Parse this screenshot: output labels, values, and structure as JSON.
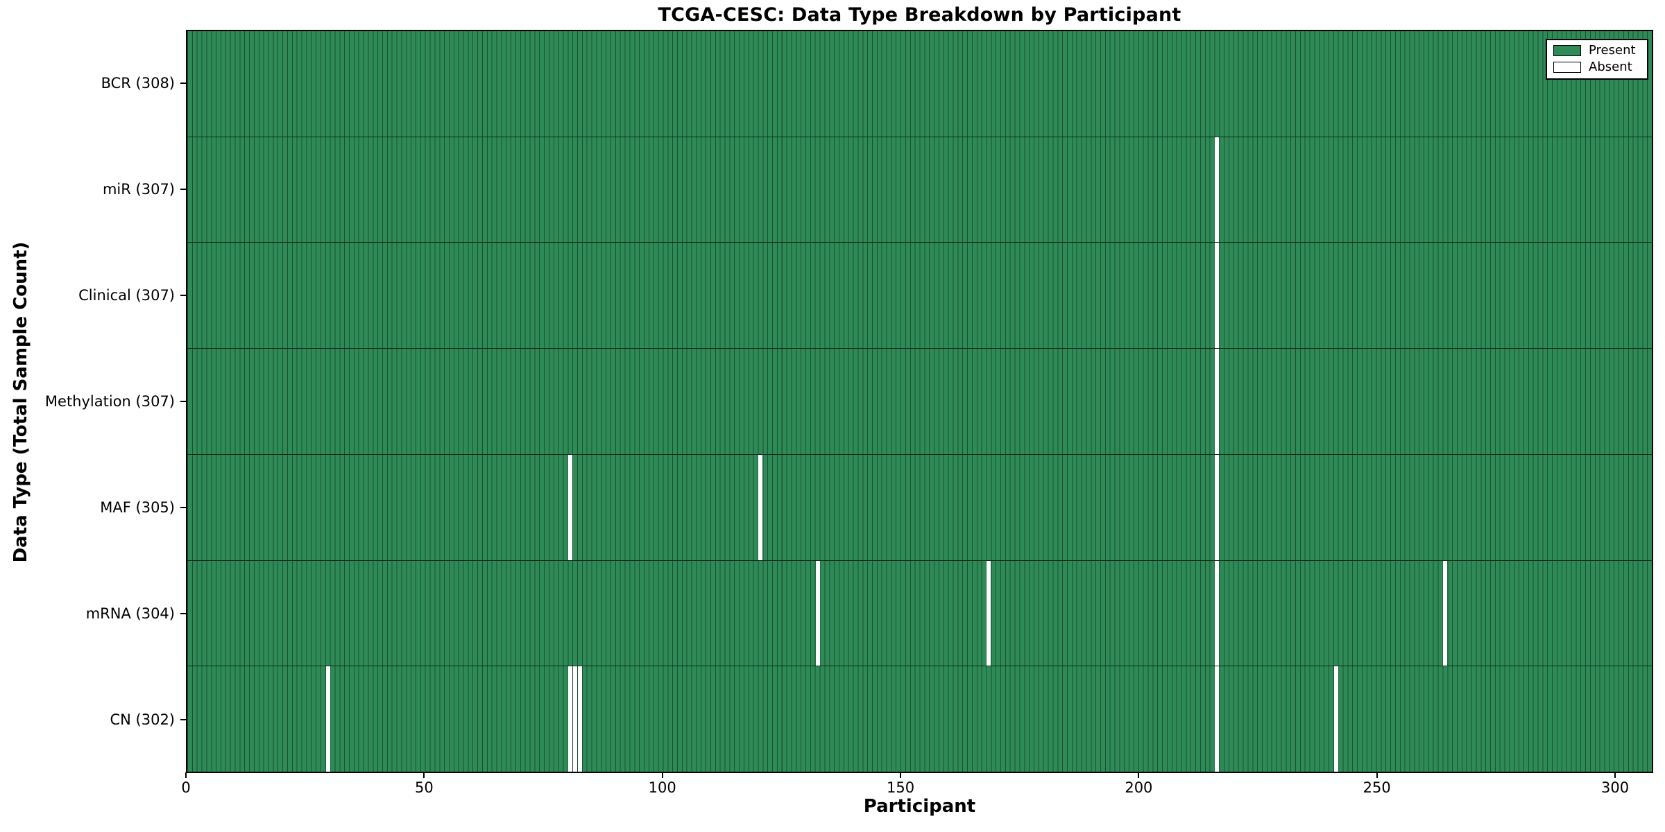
{
  "chart_data": {
    "type": "heatmap",
    "title": "TCGA-CESC: Data Type Breakdown by Participant",
    "xlabel": "Participant",
    "ylabel": "Data Type (Total Sample Count)",
    "n_participants": 308,
    "x_ticks": [
      0,
      50,
      100,
      150,
      200,
      250,
      300
    ],
    "xlim": [
      0,
      308
    ],
    "grid": false,
    "colors": {
      "present": "#2e8b57",
      "absent": "#ffffff",
      "bar_edge": "rgba(0,0,0,0.42)"
    },
    "legend": {
      "position": "upper right",
      "entries": [
        {
          "label": "Present",
          "color": "#2e8b57"
        },
        {
          "label": "Absent",
          "color": "#ffffff"
        }
      ]
    },
    "rows": [
      {
        "name": "BCR",
        "label": "BCR (308)",
        "total": 308,
        "absent_participants": []
      },
      {
        "name": "miR",
        "label": "miR (307)",
        "total": 307,
        "absent_participants": [
          216
        ]
      },
      {
        "name": "Clinical",
        "label": "Clinical (307)",
        "total": 307,
        "absent_participants": [
          216
        ]
      },
      {
        "name": "Methylation",
        "label": "Methylation (307)",
        "total": 307,
        "absent_participants": [
          216
        ]
      },
      {
        "name": "MAF",
        "label": "MAF (305)",
        "total": 305,
        "absent_participants": [
          80,
          120,
          216
        ]
      },
      {
        "name": "mRNA",
        "label": "mRNA (304)",
        "total": 304,
        "absent_participants": [
          132,
          168,
          216,
          264
        ]
      },
      {
        "name": "CN",
        "label": "CN (302)",
        "total": 302,
        "absent_participants": [
          29,
          80,
          81,
          82,
          216,
          241
        ]
      }
    ]
  }
}
